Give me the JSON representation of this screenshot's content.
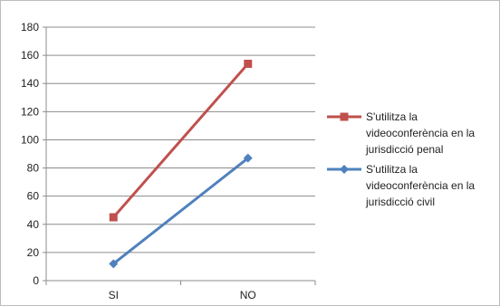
{
  "chart_data": {
    "type": "line",
    "categories": [
      "SI",
      "NO"
    ],
    "ylim": [
      0,
      180
    ],
    "yticks": [
      0,
      20,
      40,
      60,
      80,
      100,
      120,
      140,
      160,
      180
    ],
    "grid": true,
    "legend_position": "right",
    "series": [
      {
        "name": "S'utilitza la videoconferència en la jurisdicció penal",
        "name_lines": [
          "S'utilitza la",
          "videoconferència en la",
          "jurisdicció penal"
        ],
        "values": [
          45,
          154
        ],
        "color": "#C0504D",
        "marker": "square"
      },
      {
        "name": "S'utilitza la videoconferència en la jurisdicció civil",
        "name_lines": [
          "S'utilitza la",
          "videoconferència en la",
          "jurisdicció civil"
        ],
        "values": [
          12,
          87
        ],
        "color": "#4F81BD",
        "marker": "diamond"
      }
    ]
  }
}
